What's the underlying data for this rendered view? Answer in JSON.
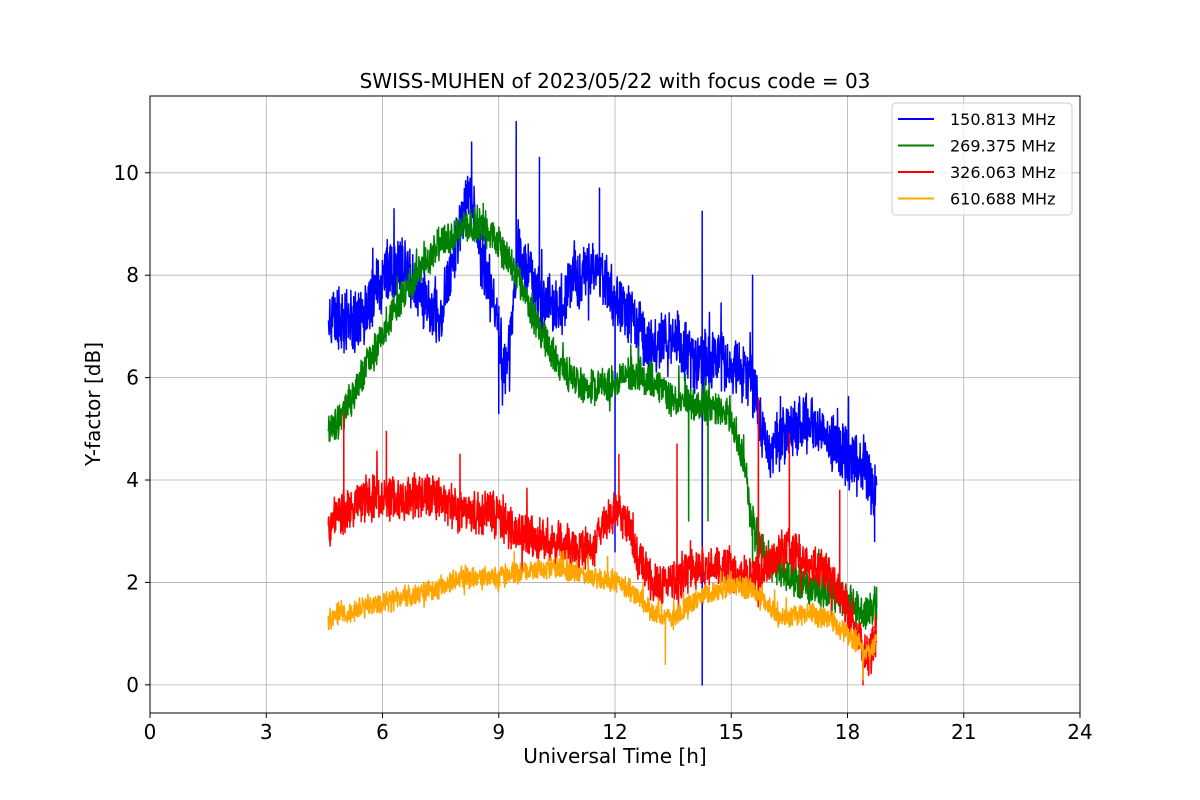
{
  "chart_data": {
    "type": "line",
    "title": "SWISS-MUHEN of 2023/05/22 with focus code = 03",
    "xlabel": "Universal Time [h]",
    "ylabel": "Y-factor [dB]",
    "xlim": [
      0,
      24
    ],
    "ylim": [
      -0.55,
      11.5
    ],
    "xticks": [
      0,
      3,
      6,
      9,
      12,
      15,
      18,
      21,
      24
    ],
    "yticks": [
      0,
      2,
      4,
      6,
      8,
      10
    ],
    "grid": true,
    "legend_position": "top-right",
    "series": [
      {
        "name": "150.813 MHz",
        "color": "#0000ff",
        "noise": 0.7,
        "points": [
          [
            4.6,
            7.3
          ],
          [
            5.0,
            7.0
          ],
          [
            5.5,
            7.2
          ],
          [
            6.0,
            7.9
          ],
          [
            6.5,
            8.2
          ],
          [
            7.0,
            7.6
          ],
          [
            7.5,
            7.2
          ],
          [
            8.0,
            9.0
          ],
          [
            8.3,
            9.6
          ],
          [
            8.6,
            8.1
          ],
          [
            9.0,
            6.9
          ],
          [
            9.2,
            6.0
          ],
          [
            9.5,
            8.5
          ],
          [
            10.0,
            7.6
          ],
          [
            10.5,
            7.3
          ],
          [
            11.0,
            8.0
          ],
          [
            11.5,
            8.1
          ],
          [
            12.0,
            7.6
          ],
          [
            12.5,
            7.0
          ],
          [
            13.0,
            6.6
          ],
          [
            13.5,
            6.9
          ],
          [
            14.0,
            6.3
          ],
          [
            14.5,
            6.4
          ],
          [
            15.0,
            6.2
          ],
          [
            15.5,
            6.0
          ],
          [
            15.8,
            5.0
          ],
          [
            16.0,
            4.6
          ],
          [
            16.5,
            5.0
          ],
          [
            17.0,
            5.1
          ],
          [
            17.5,
            4.8
          ],
          [
            18.0,
            4.4
          ],
          [
            18.5,
            4.2
          ],
          [
            18.75,
            3.7
          ]
        ],
        "spikes": [
          [
            8.3,
            10.6
          ],
          [
            9.45,
            11.0
          ],
          [
            10.05,
            10.3
          ],
          [
            11.6,
            9.7
          ],
          [
            14.25,
            9.25
          ],
          [
            15.55,
            8.0
          ],
          [
            14.25,
            0.0
          ],
          [
            12.0,
            2.6
          ],
          [
            9.0,
            5.3
          ],
          [
            18.7,
            2.8
          ]
        ]
      },
      {
        "name": "269.375 MHz",
        "color": "#008000",
        "noise": 0.4,
        "points": [
          [
            4.6,
            5.0
          ],
          [
            5.0,
            5.3
          ],
          [
            5.5,
            6.1
          ],
          [
            6.0,
            6.8
          ],
          [
            6.5,
            7.6
          ],
          [
            7.0,
            8.1
          ],
          [
            7.5,
            8.6
          ],
          [
            8.0,
            8.9
          ],
          [
            8.5,
            9.0
          ],
          [
            9.0,
            8.6
          ],
          [
            9.5,
            8.0
          ],
          [
            10.0,
            7.0
          ],
          [
            10.5,
            6.3
          ],
          [
            11.0,
            5.9
          ],
          [
            11.5,
            5.8
          ],
          [
            12.0,
            5.9
          ],
          [
            12.5,
            6.1
          ],
          [
            13.0,
            5.9
          ],
          [
            13.5,
            5.6
          ],
          [
            14.0,
            5.5
          ],
          [
            14.5,
            5.4
          ],
          [
            15.0,
            5.2
          ],
          [
            15.3,
            4.5
          ],
          [
            15.5,
            3.3
          ],
          [
            15.7,
            2.8
          ],
          [
            16.0,
            2.4
          ],
          [
            16.5,
            2.1
          ],
          [
            17.0,
            1.9
          ],
          [
            17.5,
            1.8
          ],
          [
            18.0,
            1.6
          ],
          [
            18.5,
            1.4
          ],
          [
            18.75,
            1.5
          ]
        ],
        "spikes": [
          [
            8.6,
            9.4
          ],
          [
            13.9,
            3.2
          ],
          [
            14.4,
            3.2
          ],
          [
            15.55,
            2.3
          ],
          [
            18.75,
            1.9
          ]
        ]
      },
      {
        "name": "326.063 MHz",
        "color": "#ff0000",
        "noise": 0.5,
        "points": [
          [
            4.6,
            3.1
          ],
          [
            5.0,
            3.4
          ],
          [
            5.5,
            3.6
          ],
          [
            6.0,
            3.7
          ],
          [
            6.5,
            3.6
          ],
          [
            7.0,
            3.7
          ],
          [
            7.5,
            3.6
          ],
          [
            8.0,
            3.4
          ],
          [
            8.5,
            3.3
          ],
          [
            9.0,
            3.3
          ],
          [
            9.5,
            3.0
          ],
          [
            10.0,
            2.9
          ],
          [
            10.5,
            2.8
          ],
          [
            11.0,
            2.6
          ],
          [
            11.5,
            2.8
          ],
          [
            12.0,
            3.4
          ],
          [
            12.3,
            3.2
          ],
          [
            12.6,
            2.5
          ],
          [
            13.0,
            2.0
          ],
          [
            13.5,
            2.0
          ],
          [
            14.0,
            2.3
          ],
          [
            14.5,
            2.3
          ],
          [
            15.0,
            2.3
          ],
          [
            15.5,
            2.0
          ],
          [
            16.0,
            2.4
          ],
          [
            16.5,
            2.7
          ],
          [
            17.0,
            2.3
          ],
          [
            17.5,
            2.2
          ],
          [
            18.0,
            1.5
          ],
          [
            18.5,
            0.5
          ],
          [
            18.75,
            1.0
          ]
        ],
        "spikes": [
          [
            5.0,
            5.3
          ],
          [
            6.1,
            4.95
          ],
          [
            8.0,
            4.5
          ],
          [
            12.1,
            4.5
          ],
          [
            13.6,
            4.7
          ],
          [
            15.7,
            5.6
          ],
          [
            16.5,
            4.9
          ],
          [
            17.8,
            3.8
          ],
          [
            18.4,
            0.0
          ]
        ]
      },
      {
        "name": "610.688 MHz",
        "color": "#ffa500",
        "noise": 0.25,
        "points": [
          [
            4.6,
            1.3
          ],
          [
            5.0,
            1.4
          ],
          [
            5.5,
            1.5
          ],
          [
            6.0,
            1.6
          ],
          [
            6.5,
            1.7
          ],
          [
            7.0,
            1.8
          ],
          [
            7.5,
            1.9
          ],
          [
            8.0,
            2.1
          ],
          [
            8.5,
            2.1
          ],
          [
            9.0,
            2.1
          ],
          [
            9.5,
            2.2
          ],
          [
            10.0,
            2.2
          ],
          [
            10.5,
            2.3
          ],
          [
            11.0,
            2.2
          ],
          [
            11.5,
            2.1
          ],
          [
            12.0,
            2.0
          ],
          [
            12.5,
            1.8
          ],
          [
            13.0,
            1.4
          ],
          [
            13.5,
            1.3
          ],
          [
            14.0,
            1.6
          ],
          [
            14.5,
            1.8
          ],
          [
            15.0,
            1.9
          ],
          [
            15.5,
            1.9
          ],
          [
            16.0,
            1.5
          ],
          [
            16.5,
            1.3
          ],
          [
            17.0,
            1.4
          ],
          [
            17.5,
            1.3
          ],
          [
            18.0,
            1.0
          ],
          [
            18.5,
            0.6
          ],
          [
            18.75,
            0.9
          ]
        ],
        "spikes": [
          [
            9.4,
            2.6
          ],
          [
            10.6,
            2.6
          ],
          [
            13.3,
            0.4
          ],
          [
            18.4,
            0.1
          ]
        ]
      }
    ]
  }
}
